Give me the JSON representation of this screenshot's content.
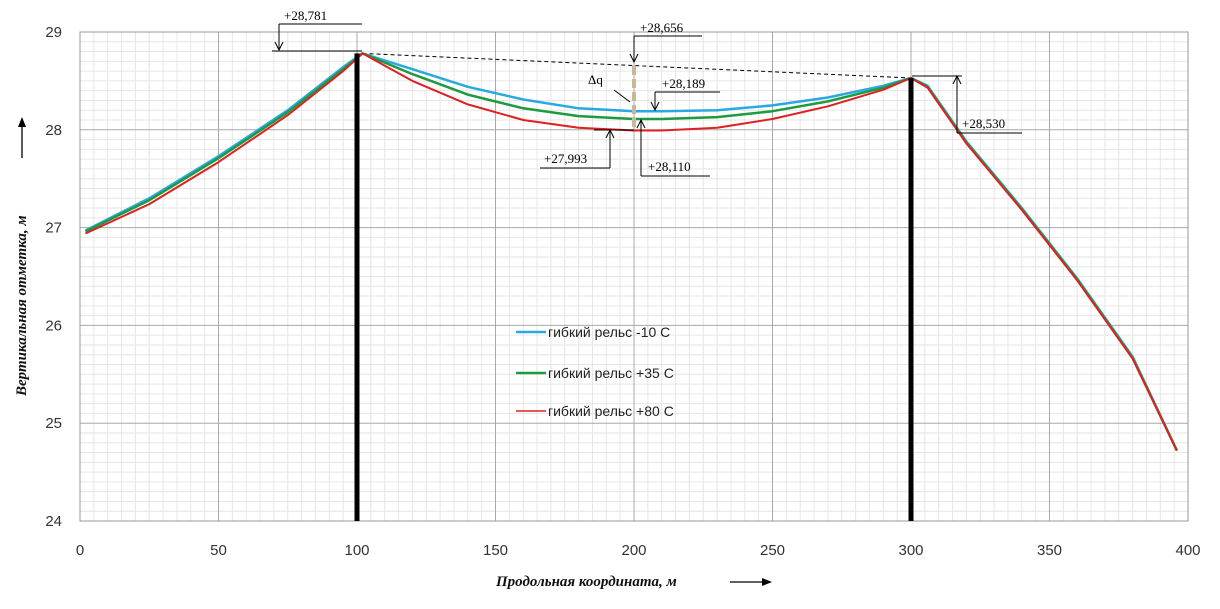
{
  "chart_data": {
    "type": "line",
    "xlabel": "Продольная координата, м",
    "ylabel": "Вертикальная отметка, м",
    "xlim": [
      0,
      400
    ],
    "ylim": [
      24,
      29
    ],
    "x_ticks": [
      "0",
      "50",
      "100",
      "150",
      "200",
      "250",
      "300",
      "350",
      "400"
    ],
    "y_ticks": [
      "24",
      "25",
      "26",
      "27",
      "28",
      "29"
    ],
    "grid": true,
    "legend_position": "center",
    "series": [
      {
        "name": "гибкий рельс -10 С",
        "color": "#29a9e0",
        "points": [
          [
            2,
            26.97
          ],
          [
            25,
            27.3
          ],
          [
            50,
            27.73
          ],
          [
            75,
            28.2
          ],
          [
            95,
            28.64
          ],
          [
            102,
            28.781
          ],
          [
            120,
            28.62
          ],
          [
            140,
            28.44
          ],
          [
            160,
            28.31
          ],
          [
            180,
            28.22
          ],
          [
            200,
            28.19
          ],
          [
            210,
            28.189
          ],
          [
            230,
            28.2
          ],
          [
            250,
            28.25
          ],
          [
            270,
            28.33
          ],
          [
            290,
            28.45
          ],
          [
            300,
            28.53
          ],
          [
            306,
            28.45
          ],
          [
            320,
            27.88
          ],
          [
            340,
            27.2
          ],
          [
            360,
            26.48
          ],
          [
            380,
            25.68
          ],
          [
            396,
            24.72
          ]
        ]
      },
      {
        "name": "гибкий рельс +35 С",
        "color": "#1e9a40",
        "points": [
          [
            2,
            26.96
          ],
          [
            25,
            27.28
          ],
          [
            50,
            27.71
          ],
          [
            75,
            28.18
          ],
          [
            95,
            28.62
          ],
          [
            102,
            28.781
          ],
          [
            120,
            28.57
          ],
          [
            140,
            28.36
          ],
          [
            160,
            28.22
          ],
          [
            180,
            28.14
          ],
          [
            200,
            28.11
          ],
          [
            210,
            28.11
          ],
          [
            230,
            28.13
          ],
          [
            250,
            28.19
          ],
          [
            270,
            28.29
          ],
          [
            290,
            28.43
          ],
          [
            300,
            28.53
          ],
          [
            306,
            28.44
          ],
          [
            320,
            27.87
          ],
          [
            340,
            27.19
          ],
          [
            360,
            26.47
          ],
          [
            380,
            25.67
          ],
          [
            396,
            24.72
          ]
        ]
      },
      {
        "name": "гибкий рельс +80 С",
        "color": "#e02020",
        "points": [
          [
            2,
            26.94
          ],
          [
            25,
            27.24
          ],
          [
            50,
            27.67
          ],
          [
            75,
            28.15
          ],
          [
            95,
            28.6
          ],
          [
            102,
            28.781
          ],
          [
            120,
            28.5
          ],
          [
            140,
            28.26
          ],
          [
            160,
            28.1
          ],
          [
            180,
            28.02
          ],
          [
            200,
            27.993
          ],
          [
            210,
            27.993
          ],
          [
            230,
            28.02
          ],
          [
            250,
            28.11
          ],
          [
            270,
            28.24
          ],
          [
            290,
            28.41
          ],
          [
            300,
            28.53
          ],
          [
            306,
            28.43
          ],
          [
            320,
            27.86
          ],
          [
            340,
            27.18
          ],
          [
            360,
            26.46
          ],
          [
            380,
            25.66
          ],
          [
            396,
            24.72
          ]
        ]
      }
    ],
    "supports": [
      100,
      300
    ],
    "chord": [
      [
        102,
        28.781
      ],
      [
        300,
        28.53
      ]
    ],
    "annotations": [
      {
        "label": "+28,781",
        "x": 102,
        "y": 28.781
      },
      {
        "label": "+28,656",
        "x": 200,
        "y": 28.656
      },
      {
        "label": "+28,189",
        "x": 207,
        "y": 28.189
      },
      {
        "label": "+28,530",
        "x": 300,
        "y": 28.53
      },
      {
        "label": "+27,993",
        "x": 200,
        "y": 27.993
      },
      {
        "label": "+28,110",
        "x": 203,
        "y": 28.11
      },
      {
        "label": "Δq",
        "x": 200,
        "y": 28.4
      }
    ]
  }
}
